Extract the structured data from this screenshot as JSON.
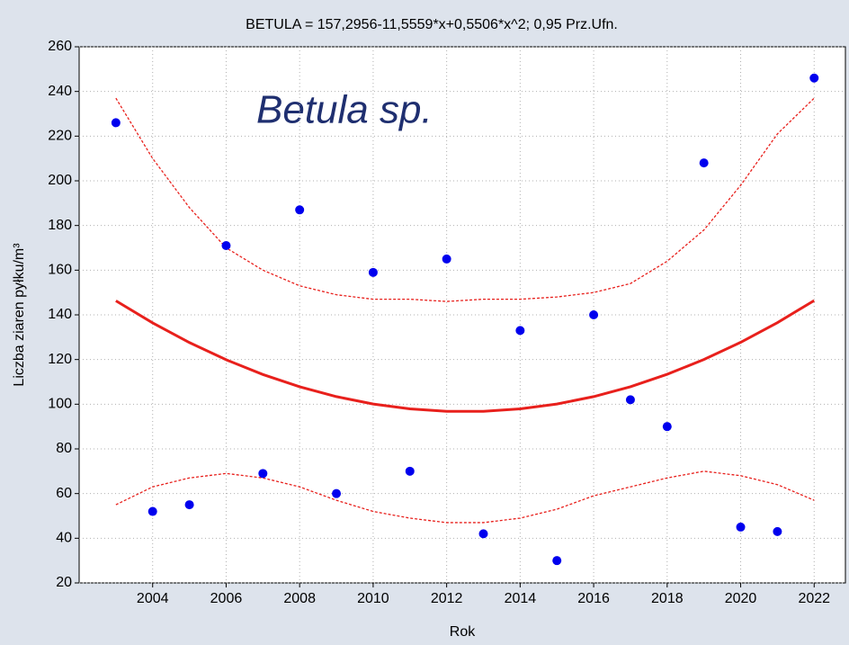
{
  "chart_data": {
    "type": "scatter",
    "title": "BETULA = 157,2956-11,5559*x+0,5506*x^2; 0,95 Prz.Ufn.",
    "annotation": "Betula sp.",
    "x_label": "Rok",
    "y_label": "Liczba ziaren pyłku/m³",
    "x": [
      2003,
      2004,
      2005,
      2006,
      2007,
      2008,
      2009,
      2010,
      2011,
      2012,
      2013,
      2014,
      2015,
      2016,
      2017,
      2018,
      2019,
      2020,
      2021,
      2022
    ],
    "values": [
      226,
      52,
      55,
      171,
      69,
      187,
      60,
      159,
      70,
      165,
      42,
      133,
      30,
      140,
      102,
      90,
      208,
      45,
      43,
      246
    ],
    "color": "#0000ee",
    "fit": {
      "color": "#e8201c",
      "values": [
        146.3,
        136.4,
        127.6,
        119.9,
        113.3,
        107.8,
        103.4,
        100.1,
        97.9,
        96.8,
        96.8,
        97.9,
        100.1,
        103.4,
        107.8,
        113.4,
        120.0,
        127.7,
        136.5,
        146.4
      ]
    },
    "upper_band": {
      "color": "#e8201c",
      "values": [
        237,
        210,
        188,
        170,
        160,
        153,
        149,
        147,
        147,
        146,
        147,
        147,
        148,
        150,
        154,
        164,
        178,
        198,
        221,
        237
      ]
    },
    "lower_band": {
      "color": "#e8201c",
      "values": [
        55,
        63,
        67,
        69,
        67,
        63,
        57,
        52,
        49,
        47,
        47,
        49,
        53,
        59,
        63,
        67,
        70,
        68,
        64,
        57
      ]
    },
    "xlim": [
      2002,
      2022.85
    ],
    "ylim": [
      20,
      260
    ],
    "xticks": [
      2004,
      2006,
      2008,
      2010,
      2012,
      2014,
      2016,
      2018,
      2020,
      2022
    ],
    "yticks": [
      20,
      40,
      60,
      80,
      100,
      120,
      140,
      160,
      180,
      200,
      220,
      240,
      260
    ],
    "grid": true
  }
}
